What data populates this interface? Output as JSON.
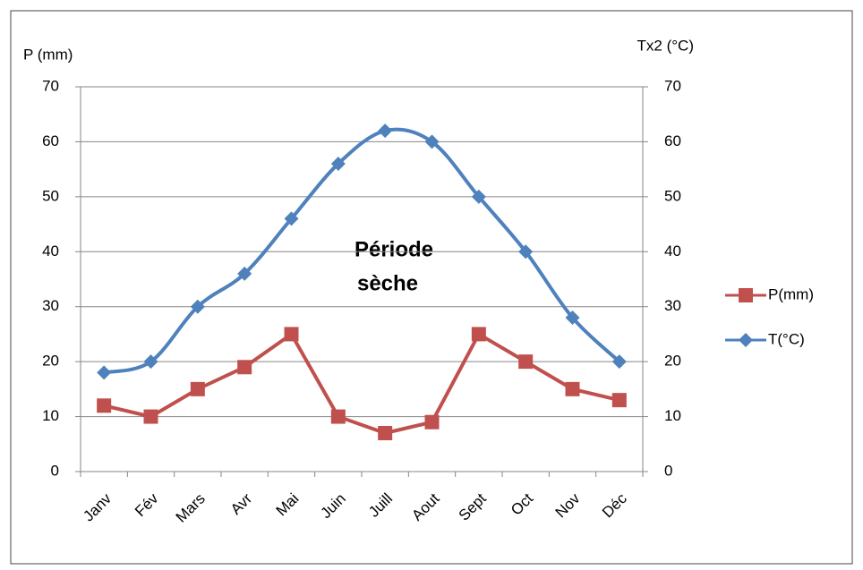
{
  "chart_data": {
    "type": "line",
    "categories": [
      "Janv",
      "Fév",
      "Mars",
      "Avr",
      "Mai",
      "Juin",
      "Juill",
      "Aout",
      "Sept",
      "Oct",
      "Nov",
      "Déc"
    ],
    "series": [
      {
        "name": "P(mm)",
        "color": "#c0504d",
        "marker": "square",
        "smooth": false,
        "values": [
          12,
          10,
          15,
          19,
          25,
          10,
          7,
          9,
          25,
          20,
          15,
          13
        ]
      },
      {
        "name": "T(°C)",
        "color": "#4f81bd",
        "marker": "diamond",
        "smooth": true,
        "axis": "y2",
        "values": [
          18,
          20,
          30,
          36,
          46,
          56,
          62,
          60,
          50,
          40,
          28,
          20
        ]
      }
    ],
    "ylabel": "P (mm)",
    "y2label": "Tx2 (°C)",
    "ylim": [
      0,
      70
    ],
    "yticks": [
      0,
      10,
      20,
      30,
      40,
      50,
      60,
      70
    ],
    "y2lim": [
      0,
      70
    ],
    "y2ticks": [
      0,
      10,
      20,
      30,
      40,
      50,
      60,
      70
    ],
    "annotation": [
      "Période",
      "sèche"
    ],
    "grid": true,
    "legend": "right"
  }
}
